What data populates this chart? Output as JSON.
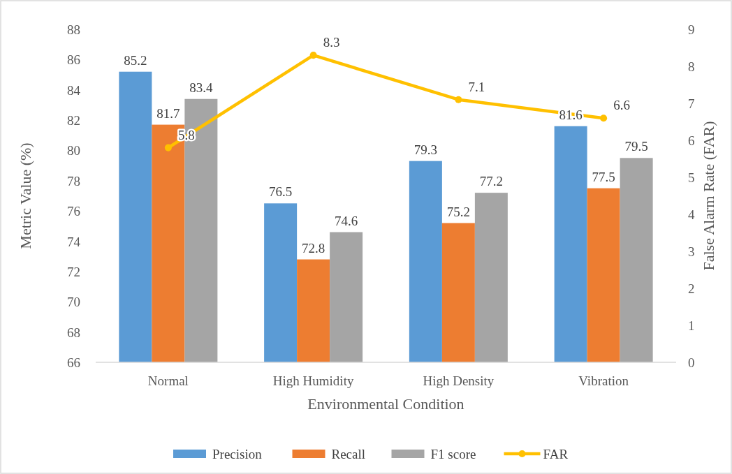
{
  "chart_data": {
    "type": "bar",
    "xlabel": "Environmental Condition",
    "ylabel": "Metric Value (%)",
    "y2label": "False Alarm Rate (FAR)",
    "categories": [
      "Normal",
      "High Humidity",
      "High Density",
      "Vibration"
    ],
    "series": [
      {
        "name": "Precision",
        "color": "#5b9bd5",
        "values": [
          85.2,
          76.5,
          79.3,
          81.6
        ]
      },
      {
        "name": "Recall",
        "color": "#ed7d31",
        "values": [
          81.7,
          72.8,
          75.2,
          77.5
        ]
      },
      {
        "name": "F1 score",
        "color": "#a5a5a5",
        "values": [
          83.4,
          74.6,
          77.2,
          79.5
        ]
      },
      {
        "name": "FAR",
        "type": "line",
        "axis": "y2",
        "color": "#ffc000",
        "marker": "circle",
        "values": [
          5.8,
          8.3,
          7.1,
          6.6
        ]
      }
    ],
    "ylim": [
      66,
      88
    ],
    "yticks": [
      66,
      68,
      70,
      72,
      74,
      76,
      78,
      80,
      82,
      84,
      86,
      88
    ],
    "y2lim": [
      0,
      9
    ],
    "y2ticks": [
      0,
      1,
      2,
      3,
      4,
      5,
      6,
      7,
      8,
      9
    ],
    "data_labels": true,
    "grid": false,
    "legend": "bottom"
  }
}
